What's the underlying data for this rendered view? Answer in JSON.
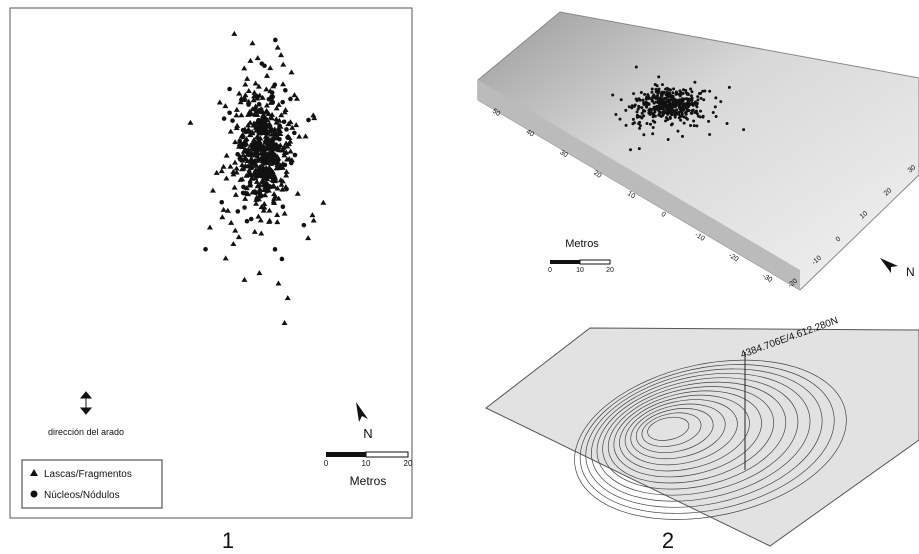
{
  "panel1": {
    "label": "1",
    "plow_direction": "dirección del arado",
    "north": "N",
    "scale": {
      "ticks": [
        "0",
        "10",
        "20"
      ],
      "unit": "Metros"
    },
    "legend": [
      "Lascas/Fragmentos",
      "Núcleos/Nódulos"
    ]
  },
  "panel2": {
    "label": "2",
    "north": "N",
    "scale": {
      "unit": "Metros",
      "ticks": [
        "0",
        "10",
        "20"
      ]
    },
    "front_axis": [
      "50",
      "40",
      "30",
      "20",
      "10",
      "0",
      "-10",
      "-20",
      "-30"
    ],
    "right_axis": [
      "-20",
      "-10",
      "0",
      "10",
      "20",
      "30"
    ],
    "coordinate": "4384.706E/4.612.280N"
  }
}
